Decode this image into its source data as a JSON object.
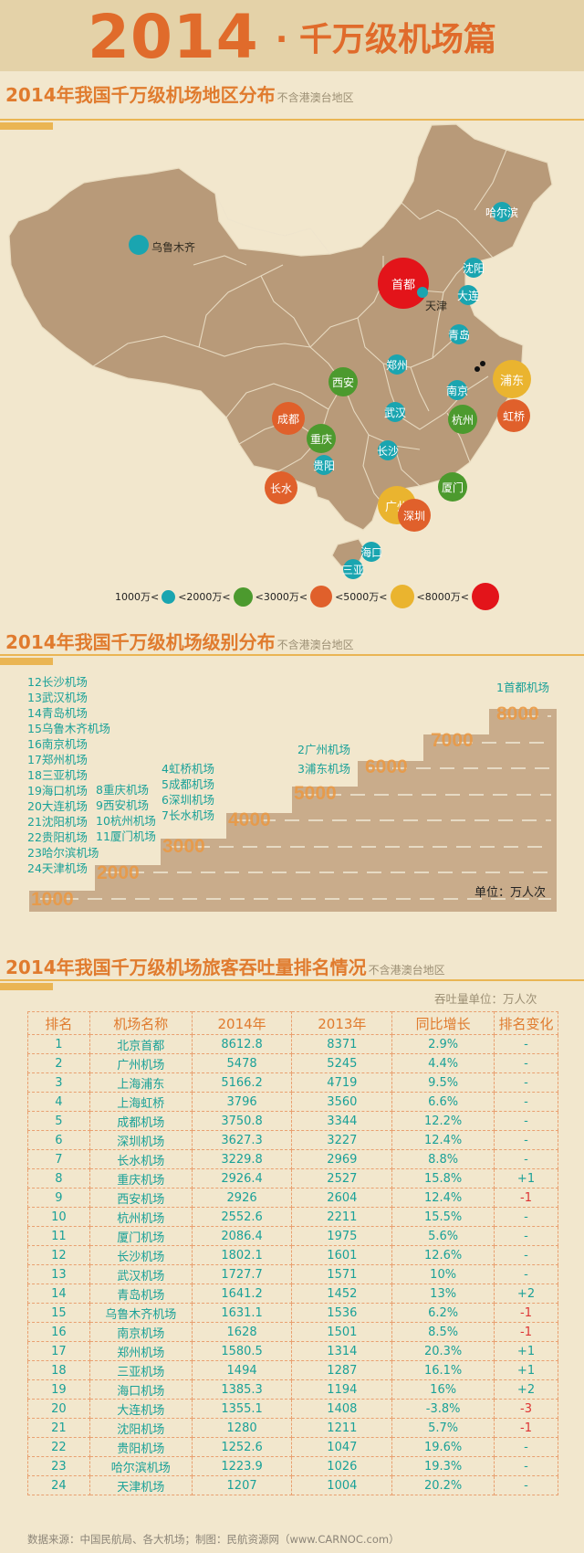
{
  "header": {
    "year": "2014",
    "subtitle": "· 千万级机场篇"
  },
  "section1": {
    "title": "2014年我国千万级机场地区分布",
    "note": "不含港澳台地区"
  },
  "map": {
    "airports": [
      {
        "name": "首都",
        "tier": 5,
        "label_inside": true
      },
      {
        "name": "浦东",
        "tier": 4,
        "label_inside": true
      },
      {
        "name": "虹桥",
        "tier": 3,
        "label_inside": true
      },
      {
        "name": "广州",
        "tier": 4,
        "label_inside": true
      },
      {
        "name": "成都",
        "tier": 3,
        "label_inside": true
      },
      {
        "name": "长水",
        "tier": 3,
        "label_inside": true
      },
      {
        "name": "深圳",
        "tier": 3,
        "label_inside": true
      },
      {
        "name": "西安",
        "tier": 2,
        "label_inside": true
      },
      {
        "name": "重庆",
        "tier": 2,
        "label_inside": true
      },
      {
        "name": "杭州",
        "tier": 2,
        "label_inside": true
      },
      {
        "name": "厦门",
        "tier": 2,
        "label_inside": true
      },
      {
        "name": "乌鲁木齐",
        "tier": 1,
        "label_inside": false
      },
      {
        "name": "哈尔滨",
        "tier": 1,
        "label_inside": true
      },
      {
        "name": "沈阳",
        "tier": 1,
        "label_inside": true
      },
      {
        "name": "大连",
        "tier": 1,
        "label_inside": true
      },
      {
        "name": "天津",
        "tier": 1,
        "label_inside": false
      },
      {
        "name": "青岛",
        "tier": 1,
        "label_inside": true
      },
      {
        "name": "郑州",
        "tier": 1,
        "label_inside": true
      },
      {
        "name": "南京",
        "tier": 1,
        "label_inside": true
      },
      {
        "name": "武汉",
        "tier": 1,
        "label_inside": true
      },
      {
        "name": "长沙",
        "tier": 1,
        "label_inside": true
      },
      {
        "name": "贵阳",
        "tier": 1,
        "label_inside": true
      },
      {
        "name": "海口",
        "tier": 1,
        "label_inside": true
      },
      {
        "name": "三亚",
        "tier": 1,
        "label_inside": true
      }
    ],
    "legend": [
      "1000万<",
      "<2000万<",
      "<3000万<",
      "<5000万<",
      "<8000万<"
    ],
    "colors": {
      "tier1": "#1aa5b0",
      "tier2": "#4c9a2e",
      "tier3": "#e0602b",
      "tier4": "#eab42f",
      "tier5": "#e3141a",
      "land": "#b89a79",
      "border": "#f4ead6"
    }
  },
  "section2": {
    "title": "2014年我国千万级机场级别分布",
    "note": "不含港澳台地区"
  },
  "levels": {
    "ticks": [
      "1000",
      "2000",
      "3000",
      "4000",
      "5000",
      "6000",
      "7000",
      "8000"
    ],
    "groups": [
      {
        "level": "1000",
        "airports": [
          "12长沙机场",
          "13武汉机场",
          "14青岛机场",
          "15乌鲁木齐机场",
          "16南京机场",
          "17郑州机场",
          "18三亚机场",
          "19海口机场",
          "20大连机场",
          "21沈阳机场",
          "22贵阳机场",
          "23哈尔滨机场",
          "24天津机场"
        ]
      },
      {
        "level": "2000",
        "airports": [
          "8重庆机场",
          "9西安机场",
          "10杭州机场",
          "11厦门机场"
        ]
      },
      {
        "level": "3000",
        "airports": [
          "4虹桥机场",
          "5成都机场",
          "6深圳机场",
          "7长水机场"
        ]
      },
      {
        "level": "5000",
        "airports": [
          "2广州机场",
          "3浦东机场"
        ]
      },
      {
        "level": "8000",
        "airports": [
          "1首都机场"
        ]
      }
    ],
    "unit": "单位：万人次"
  },
  "section3": {
    "title": "2014年我国千万级机场旅客吞吐量排名情况",
    "note": "不含港澳台地区",
    "unit": "吞吐量单位：万人次"
  },
  "table": {
    "headers": [
      "排名",
      "机场名称",
      "2014年",
      "2013年",
      "同比增长",
      "排名变化"
    ],
    "rows": [
      [
        "1",
        "北京首都",
        "8612.8",
        "8371",
        "2.9%",
        "-"
      ],
      [
        "2",
        "广州机场",
        "5478",
        "5245",
        "4.4%",
        "-"
      ],
      [
        "3",
        "上海浦东",
        "5166.2",
        "4719",
        "9.5%",
        "-"
      ],
      [
        "4",
        "上海虹桥",
        "3796",
        "3560",
        "6.6%",
        "-"
      ],
      [
        "5",
        "成都机场",
        "3750.8",
        "3344",
        "12.2%",
        "-"
      ],
      [
        "6",
        "深圳机场",
        "3627.3",
        "3227",
        "12.4%",
        "-"
      ],
      [
        "7",
        "长水机场",
        "3229.8",
        "2969",
        "8.8%",
        "-"
      ],
      [
        "8",
        "重庆机场",
        "2926.4",
        "2527",
        "15.8%",
        "+1"
      ],
      [
        "9",
        "西安机场",
        "2926",
        "2604",
        "12.4%",
        "-1"
      ],
      [
        "10",
        "杭州机场",
        "2552.6",
        "2211",
        "15.5%",
        "-"
      ],
      [
        "11",
        "厦门机场",
        "2086.4",
        "1975",
        "5.6%",
        "-"
      ],
      [
        "12",
        "长沙机场",
        "1802.1",
        "1601",
        "12.6%",
        "-"
      ],
      [
        "13",
        "武汉机场",
        "1727.7",
        "1571",
        "10%",
        "-"
      ],
      [
        "14",
        "青岛机场",
        "1641.2",
        "1452",
        "13%",
        "+2"
      ],
      [
        "15",
        "乌鲁木齐机场",
        "1631.1",
        "1536",
        "6.2%",
        "-1"
      ],
      [
        "16",
        "南京机场",
        "1628",
        "1501",
        "8.5%",
        "-1"
      ],
      [
        "17",
        "郑州机场",
        "1580.5",
        "1314",
        "20.3%",
        "+1"
      ],
      [
        "18",
        "三亚机场",
        "1494",
        "1287",
        "16.1%",
        "+1"
      ],
      [
        "19",
        "海口机场",
        "1385.3",
        "1194",
        "16%",
        "+2"
      ],
      [
        "20",
        "大连机场",
        "1355.1",
        "1408",
        "-3.8%",
        "-3"
      ],
      [
        "21",
        "沈阳机场",
        "1280",
        "1211",
        "5.7%",
        "-1"
      ],
      [
        "22",
        "贵阳机场",
        "1252.6",
        "1047",
        "19.6%",
        "-"
      ],
      [
        "23",
        "哈尔滨机场",
        "1223.9",
        "1026",
        "19.3%",
        "-"
      ],
      [
        "24",
        "天津机场",
        "1207",
        "1004",
        "20.2%",
        "-"
      ]
    ]
  },
  "chart_data": [
    {
      "type": "scatter",
      "title": "2014年我国千万级机场地区分布",
      "subtitle": "不含港澳台地区",
      "legend": [
        "1000万<",
        "<2000万<",
        "<3000万<",
        "<5000万<",
        "<8000万<"
      ]
    },
    {
      "type": "bar",
      "title": "2014年我国千万级机场级别分布",
      "subtitle": "不含港澳台地区",
      "categories": [
        "1000",
        "2000",
        "3000",
        "4000",
        "5000",
        "6000",
        "7000",
        "8000"
      ],
      "values": [
        13,
        4,
        4,
        0,
        2,
        0,
        0,
        1
      ],
      "ylabel": "单位：万人次"
    },
    {
      "type": "table",
      "title": "2014年我国千万级机场旅客吞吐量排名情况",
      "subtitle": "不含港澳台地区",
      "columns": [
        "排名",
        "机场名称",
        "2014年",
        "2013年",
        "同比增长",
        "排名变化"
      ],
      "rows_count": 24
    }
  ],
  "footer": "数据来源：中国民航局、各大机场；制图：民航资源网（www.CARNOC.com）"
}
